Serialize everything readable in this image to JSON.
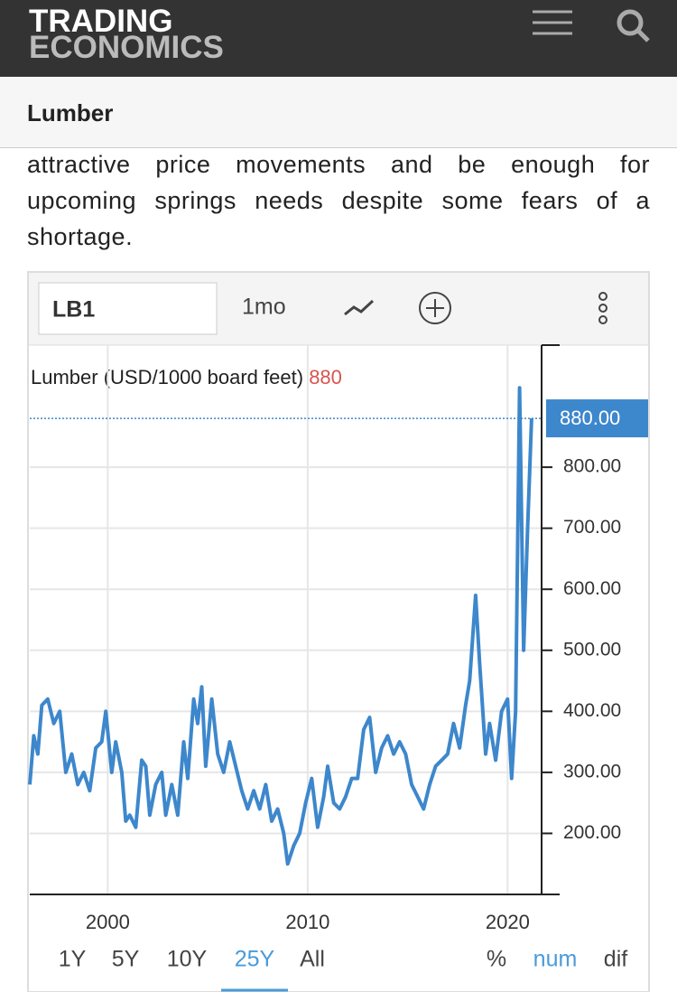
{
  "header": {
    "logo_top": "TRADING",
    "logo_bottom": "ECONOMICS"
  },
  "page_title": "Lumber",
  "paragraph": [
    "attractive price movements and be enough for",
    "upcoming springs needs despite some fears of a",
    "shortage."
  ],
  "toolbar": {
    "symbol": "LB1",
    "interval": "1mo"
  },
  "chart_data": {
    "type": "line",
    "title": "Lumber (USD/1000 board feet)",
    "current": {
      "value": 880,
      "label": "880.00"
    },
    "x": [
      1996.1,
      1996.3,
      1996.5,
      1996.7,
      1997.0,
      1997.3,
      1997.6,
      1997.9,
      1998.2,
      1998.5,
      1998.8,
      1999.1,
      1999.4,
      1999.7,
      1999.9,
      2000.2,
      2000.4,
      2000.7,
      2000.9,
      2001.1,
      2001.4,
      2001.7,
      2001.9,
      2002.1,
      2002.4,
      2002.7,
      2002.9,
      2003.2,
      2003.5,
      2003.8,
      2004.0,
      2004.3,
      2004.5,
      2004.7,
      2004.9,
      2005.2,
      2005.5,
      2005.8,
      2006.1,
      2006.4,
      2006.7,
      2007.0,
      2007.3,
      2007.6,
      2007.9,
      2008.2,
      2008.5,
      2008.8,
      2009.0,
      2009.3,
      2009.6,
      2009.9,
      2010.2,
      2010.5,
      2010.8,
      2011.0,
      2011.3,
      2011.6,
      2011.9,
      2012.2,
      2012.5,
      2012.8,
      2013.1,
      2013.4,
      2013.7,
      2014.0,
      2014.3,
      2014.6,
      2014.9,
      2015.2,
      2015.5,
      2015.8,
      2016.1,
      2016.4,
      2016.7,
      2017.0,
      2017.3,
      2017.6,
      2017.9,
      2018.1,
      2018.4,
      2018.6,
      2018.9,
      2019.1,
      2019.4,
      2019.7,
      2020.0,
      2020.2,
      2020.4,
      2020.6,
      2020.8,
      2021.0,
      2021.2
    ],
    "series": [
      {
        "name": "LB1",
        "color": "#3d87cc",
        "values": [
          280,
          360,
          330,
          410,
          420,
          380,
          400,
          300,
          330,
          280,
          300,
          270,
          340,
          350,
          400,
          300,
          350,
          300,
          220,
          230,
          210,
          320,
          310,
          230,
          280,
          300,
          230,
          280,
          230,
          350,
          290,
          420,
          380,
          440,
          310,
          420,
          330,
          300,
          350,
          310,
          270,
          240,
          270,
          240,
          280,
          220,
          240,
          200,
          150,
          180,
          200,
          250,
          290,
          210,
          260,
          310,
          250,
          240,
          260,
          290,
          290,
          370,
          390,
          300,
          340,
          360,
          330,
          350,
          330,
          280,
          260,
          240,
          280,
          310,
          320,
          330,
          380,
          340,
          410,
          450,
          590,
          480,
          330,
          380,
          320,
          400,
          420,
          290,
          400,
          930,
          500,
          700,
          880
        ]
      }
    ],
    "xlim": [
      1996.1,
      2021.7
    ],
    "xticks": [
      2000,
      2010,
      2020
    ],
    "ylim": [
      100,
      1000
    ],
    "yticks": [
      {
        "value": 200,
        "label": "200.00"
      },
      {
        "value": 300,
        "label": "300.00"
      },
      {
        "value": 400,
        "label": "400.00"
      },
      {
        "value": 500,
        "label": "500.00"
      },
      {
        "value": 600,
        "label": "600.00"
      },
      {
        "value": 700,
        "label": "700.00"
      },
      {
        "value": 800,
        "label": "800.00"
      }
    ],
    "grid": true
  },
  "range_buttons": [
    "1Y",
    "5Y",
    "10Y",
    "25Y",
    "All"
  ],
  "active_range": 3,
  "mode_buttons": [
    "%",
    "num",
    "dif"
  ],
  "active_mode": 1
}
